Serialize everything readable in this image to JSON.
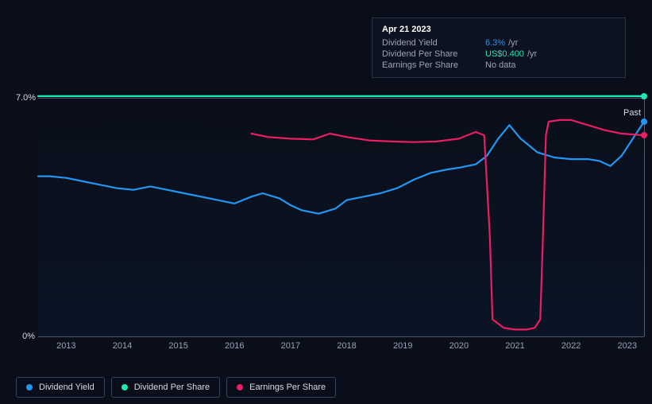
{
  "chart": {
    "type": "line",
    "background_color": "#0a0e1a",
    "grid_color": "#4a5568",
    "text_color": "#d6dbe3",
    "muted_text_color": "#9aa4b2",
    "ylim": [
      0,
      7.0
    ],
    "y_ticks": [
      {
        "value": 0,
        "label": "0%"
      },
      {
        "value": 7.0,
        "label": "7.0%"
      }
    ],
    "xlim": [
      2012.5,
      2023.3
    ],
    "x_ticks": [
      {
        "value": 2013,
        "label": "2013"
      },
      {
        "value": 2014,
        "label": "2014"
      },
      {
        "value": 2015,
        "label": "2015"
      },
      {
        "value": 2016,
        "label": "2016"
      },
      {
        "value": 2017,
        "label": "2017"
      },
      {
        "value": 2018,
        "label": "2018"
      },
      {
        "value": 2019,
        "label": "2019"
      },
      {
        "value": 2020,
        "label": "2020"
      },
      {
        "value": 2021,
        "label": "2021"
      },
      {
        "value": 2022,
        "label": "2022"
      },
      {
        "value": 2023,
        "label": "2023"
      }
    ],
    "past_label": "Past",
    "cursor_x": 2023.3,
    "line_width": 2.2,
    "series": [
      {
        "name": "Dividend Yield",
        "color": "#2196f3",
        "legend_label": "Dividend Yield",
        "points": [
          [
            2012.5,
            4.7
          ],
          [
            2012.7,
            4.7
          ],
          [
            2013.0,
            4.65
          ],
          [
            2013.3,
            4.55
          ],
          [
            2013.6,
            4.45
          ],
          [
            2013.9,
            4.35
          ],
          [
            2014.2,
            4.3
          ],
          [
            2014.5,
            4.4
          ],
          [
            2014.8,
            4.3
          ],
          [
            2015.1,
            4.2
          ],
          [
            2015.4,
            4.1
          ],
          [
            2015.7,
            4.0
          ],
          [
            2016.0,
            3.9
          ],
          [
            2016.3,
            4.1
          ],
          [
            2016.5,
            4.2
          ],
          [
            2016.8,
            4.05
          ],
          [
            2017.0,
            3.85
          ],
          [
            2017.2,
            3.7
          ],
          [
            2017.5,
            3.6
          ],
          [
            2017.8,
            3.75
          ],
          [
            2018.0,
            4.0
          ],
          [
            2018.3,
            4.1
          ],
          [
            2018.6,
            4.2
          ],
          [
            2018.9,
            4.35
          ],
          [
            2019.2,
            4.6
          ],
          [
            2019.5,
            4.8
          ],
          [
            2019.8,
            4.9
          ],
          [
            2020.0,
            4.95
          ],
          [
            2020.3,
            5.05
          ],
          [
            2020.5,
            5.3
          ],
          [
            2020.7,
            5.8
          ],
          [
            2020.9,
            6.2
          ],
          [
            2021.1,
            5.8
          ],
          [
            2021.4,
            5.4
          ],
          [
            2021.7,
            5.25
          ],
          [
            2022.0,
            5.2
          ],
          [
            2022.3,
            5.2
          ],
          [
            2022.5,
            5.15
          ],
          [
            2022.7,
            5.0
          ],
          [
            2022.9,
            5.3
          ],
          [
            2023.1,
            5.8
          ],
          [
            2023.3,
            6.3
          ]
        ]
      },
      {
        "name": "Dividend Per Share",
        "color": "#1de9b6",
        "legend_label": "Dividend Per Share",
        "points": [
          [
            2012.5,
            7.05
          ],
          [
            2023.3,
            7.05
          ]
        ]
      },
      {
        "name": "Earnings Per Share",
        "color": "#e91e63",
        "legend_label": "Earnings Per Share",
        "points": [
          [
            2016.3,
            5.95
          ],
          [
            2016.6,
            5.85
          ],
          [
            2017.0,
            5.8
          ],
          [
            2017.4,
            5.78
          ],
          [
            2017.7,
            5.95
          ],
          [
            2018.0,
            5.85
          ],
          [
            2018.4,
            5.75
          ],
          [
            2018.8,
            5.72
          ],
          [
            2019.2,
            5.7
          ],
          [
            2019.6,
            5.72
          ],
          [
            2020.0,
            5.8
          ],
          [
            2020.3,
            6.0
          ],
          [
            2020.45,
            5.9
          ],
          [
            2020.55,
            3.0
          ],
          [
            2020.6,
            0.5
          ],
          [
            2020.8,
            0.25
          ],
          [
            2021.0,
            0.2
          ],
          [
            2021.2,
            0.2
          ],
          [
            2021.35,
            0.25
          ],
          [
            2021.45,
            0.5
          ],
          [
            2021.5,
            3.0
          ],
          [
            2021.55,
            5.9
          ],
          [
            2021.6,
            6.3
          ],
          [
            2021.8,
            6.35
          ],
          [
            2022.0,
            6.35
          ],
          [
            2022.3,
            6.2
          ],
          [
            2022.6,
            6.05
          ],
          [
            2022.9,
            5.95
          ],
          [
            2023.3,
            5.9
          ]
        ]
      }
    ]
  },
  "tooltip": {
    "date": "Apr 21 2023",
    "rows": [
      {
        "label": "Dividend Yield",
        "value": "6.3%",
        "suffix": "/yr",
        "value_color": "#2196f3"
      },
      {
        "label": "Dividend Per Share",
        "value": "US$0.400",
        "suffix": "/yr",
        "value_color": "#1de9b6"
      },
      {
        "label": "Earnings Per Share",
        "value": "No data",
        "suffix": "",
        "value_color": "#9aa4b2"
      }
    ]
  },
  "legend": {
    "border_color": "#3a4256",
    "items": [
      {
        "label": "Dividend Yield",
        "color": "#2196f3"
      },
      {
        "label": "Dividend Per Share",
        "color": "#1de9b6"
      },
      {
        "label": "Earnings Per Share",
        "color": "#e91e63"
      }
    ]
  }
}
